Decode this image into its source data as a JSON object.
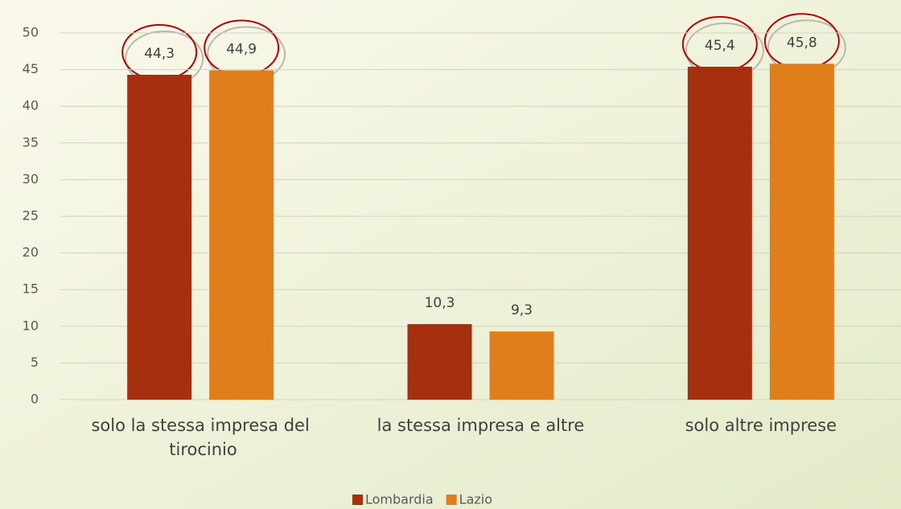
{
  "chart_data": {
    "type": "bar",
    "categories": [
      "solo la stessa impresa del tirocinio",
      "la stessa impresa e altre",
      "solo altre imprese"
    ],
    "series": [
      {
        "name": "Lombardia",
        "color": "#a52f0f",
        "values": [
          44.3,
          10.3,
          45.4
        ],
        "value_labels": [
          "44,3",
          "10,3",
          "45,4"
        ]
      },
      {
        "name": "Lazio",
        "color": "#e07e1b",
        "values": [
          44.9,
          9.3,
          45.8
        ],
        "value_labels": [
          "44,9",
          "9,3",
          "45,8"
        ]
      }
    ],
    "ylim": [
      0,
      50
    ],
    "yticks": [
      0,
      5,
      10,
      15,
      20,
      25,
      30,
      35,
      40,
      45,
      50
    ],
    "grid": true
  }
}
